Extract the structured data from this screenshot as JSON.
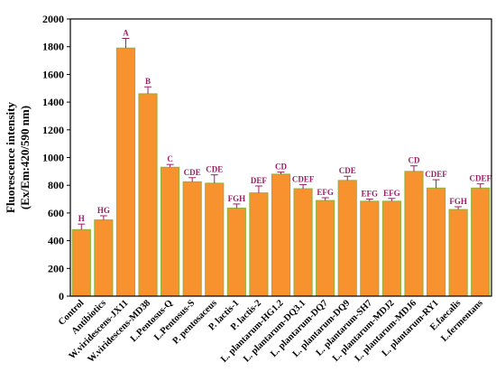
{
  "chart_data": {
    "type": "bar",
    "ylabel_line1": "Fluorescence intensity",
    "ylabel_line2": "(Ex/Em:420/590 nm)",
    "xlabel": "",
    "ylim": [
      0,
      2000
    ],
    "yticks": [
      "0",
      "200",
      "400",
      "600",
      "800",
      "1000",
      "1200",
      "1400",
      "1600",
      "1800",
      "2000"
    ],
    "bar_color": "#F7922F",
    "bar_edge_color": "#8DB33A",
    "error_color": "#9B1E64",
    "sig_color": "#9B1E64",
    "categories": [
      "Control",
      "Antibiotics",
      "W.viridescens-JX11",
      "W.viridescens-MD38",
      "L.Pentosus-Q",
      "L.Pentosus-S",
      "P. pentosaceus",
      "P. lactis-1",
      "P. lactis-2",
      "L. plantarum-HG1.2",
      "L. plantarum-DQ3.1",
      "L. plantarum-DQ7",
      "L. plantarum-DQ9",
      "L. plantarum-SH7",
      "L. plantarum-MDJ2",
      "L. plantarum-MDJ6",
      "L. plantarum-RY1",
      "E.faecalis",
      "L.fermentans"
    ],
    "values": [
      480,
      550,
      1790,
      1460,
      930,
      825,
      815,
      635,
      745,
      880,
      775,
      690,
      835,
      685,
      685,
      900,
      780,
      625,
      780
    ],
    "errors": [
      40,
      30,
      70,
      50,
      20,
      30,
      60,
      30,
      50,
      15,
      30,
      20,
      30,
      15,
      20,
      40,
      60,
      20,
      30
    ],
    "significance": [
      "H",
      "HG",
      "A",
      "B",
      "C",
      "CDE",
      "CDE",
      "FGH",
      "DEF",
      "CD",
      "CDEF",
      "EFG",
      "CDE",
      "EFG",
      "EFG",
      "CD",
      "CDEF",
      "FGH",
      "CDEF"
    ]
  }
}
